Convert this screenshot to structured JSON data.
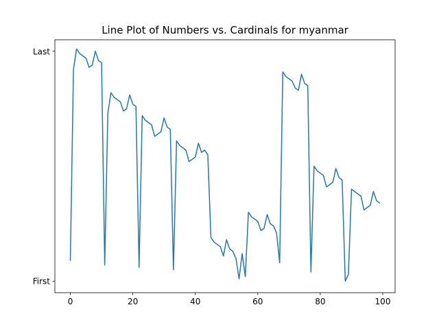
{
  "chart_data": {
    "type": "line",
    "title": "Line Plot of Numbers vs. Cardinals for myanmar",
    "xlabel": "",
    "ylabel": "",
    "xlim": [
      -4.95,
      103.95
    ],
    "ylim": [
      -0.05,
      1.05
    ],
    "xticks": [
      0,
      20,
      40,
      60,
      80,
      100
    ],
    "yticks": [
      {
        "value": 0,
        "label": "First"
      },
      {
        "value": 1,
        "label": "Last"
      }
    ],
    "grid": false,
    "legend": "none",
    "colors": {
      "line": "#1f77b4",
      "axes": "#000000",
      "background": "#ffffff"
    },
    "series": [
      {
        "x": [
          0,
          1,
          2,
          3,
          4,
          5,
          6,
          7,
          8,
          9,
          10,
          11,
          12,
          13,
          14,
          15,
          16,
          17,
          18,
          19,
          20,
          21,
          22,
          23,
          24,
          25,
          26,
          27,
          28,
          29,
          30,
          31,
          32,
          33,
          34,
          35,
          36,
          37,
          38,
          39,
          40,
          41,
          42,
          43,
          44,
          45,
          46,
          47,
          48,
          49,
          50,
          51,
          52,
          53,
          54,
          55,
          56,
          57,
          58,
          59,
          60,
          61,
          62,
          63,
          64,
          65,
          66,
          67,
          68,
          69,
          70,
          71,
          72,
          73,
          74,
          75,
          76,
          77,
          78,
          79,
          80,
          81,
          82,
          83,
          84,
          85,
          86,
          87,
          88,
          89,
          90,
          91,
          92,
          93,
          94,
          95,
          96,
          97,
          98,
          99
        ],
        "values": [
          0.09,
          0.92,
          1.01,
          0.99,
          0.98,
          0.97,
          0.93,
          0.94,
          1.0,
          0.96,
          0.95,
          0.07,
          0.73,
          0.82,
          0.8,
          0.79,
          0.78,
          0.74,
          0.75,
          0.81,
          0.77,
          0.76,
          0.06,
          0.72,
          0.7,
          0.69,
          0.68,
          0.63,
          0.64,
          0.65,
          0.71,
          0.67,
          0.66,
          0.05,
          0.61,
          0.59,
          0.58,
          0.57,
          0.52,
          0.53,
          0.54,
          0.6,
          0.56,
          0.57,
          0.55,
          0.19,
          0.17,
          0.16,
          0.15,
          0.11,
          0.18,
          0.14,
          0.13,
          0.1,
          0.01,
          0.12,
          0.02,
          0.3,
          0.28,
          0.27,
          0.26,
          0.22,
          0.23,
          0.29,
          0.25,
          0.24,
          0.21,
          0.08,
          0.91,
          0.89,
          0.88,
          0.87,
          0.84,
          0.83,
          0.9,
          0.86,
          0.85,
          0.04,
          0.5,
          0.48,
          0.47,
          0.46,
          0.41,
          0.42,
          0.43,
          0.49,
          0.45,
          0.44,
          0.0,
          0.03,
          0.4,
          0.39,
          0.38,
          0.37,
          0.31,
          0.32,
          0.33,
          0.39,
          0.35,
          0.34
        ]
      }
    ]
  }
}
